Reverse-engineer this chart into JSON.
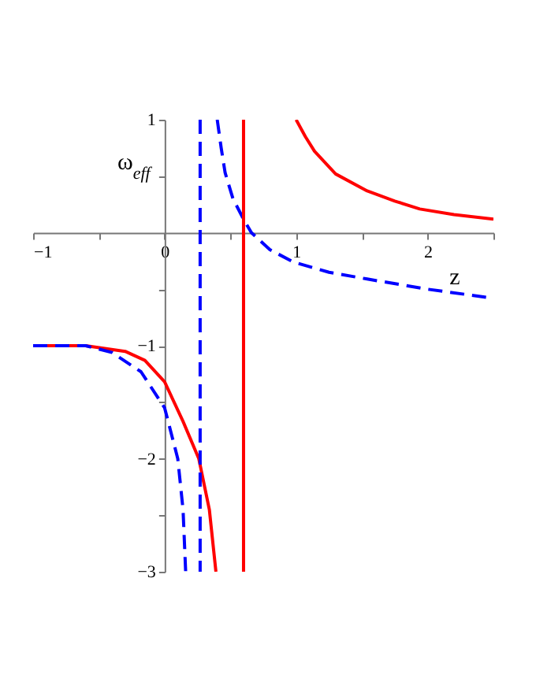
{
  "chart_data": {
    "type": "line",
    "xlabel": "z",
    "ylabel": "ω$_{eff}$",
    "xlim": [
      -1,
      2.5
    ],
    "ylim": [
      -3,
      1
    ],
    "xticks": [
      {
        "value": -1,
        "label": "−1"
      },
      {
        "value": -0.5,
        "label": null
      },
      0,
      {
        "value": 0.5,
        "label": null
      },
      1,
      {
        "value": 1.5,
        "label": null
      },
      2,
      {
        "value": 2.5,
        "label": null
      }
    ],
    "yticks": [
      {
        "value": -3,
        "label": "−3"
      },
      {
        "value": -2.5,
        "label": null
      },
      {
        "value": -2,
        "label": "−2"
      },
      {
        "value": -1.5,
        "label": null
      },
      {
        "value": -1,
        "label": "−1"
      },
      {
        "value": -0.5,
        "label": null
      },
      {
        "value": 0.5,
        "label": null
      },
      1
    ],
    "series": [
      {
        "color": "#ff0000",
        "line_style": "solid",
        "x": [
          -1,
          -0.6,
          -0.3,
          -0.15,
          0,
          0.14,
          0.26,
          0.34,
          0.39,
          null,
          1.0,
          1.07,
          1.14,
          1.3,
          1.54,
          1.75,
          1.94,
          2.2,
          2.5
        ],
        "values": [
          -1,
          -1.0,
          -1.05,
          -1.13,
          -1.32,
          -1.67,
          -2,
          -2.45,
          -3,
          null,
          1,
          0.85,
          0.72,
          0.52,
          0.37,
          0.28,
          0.21,
          0.16,
          0.12
        ]
      },
      {
        "color": "#0000ff",
        "line_style": "dashed",
        "x": [
          -1,
          -0.6,
          -0.4,
          -0.18,
          0,
          0.1,
          0.14,
          0.16,
          null,
          0.4,
          0.43,
          0.46,
          0.52,
          0.6,
          0.66,
          0.8,
          0.98,
          1.25,
          1.54,
          2.0,
          2.5
        ],
        "values": [
          -1,
          -1.0,
          -1.06,
          -1.23,
          -1.55,
          -2,
          -2.45,
          -3,
          null,
          1,
          0.75,
          0.53,
          0.3,
          0.12,
          0,
          -0.15,
          -0.26,
          -0.35,
          -0.41,
          -0.5,
          -0.58
        ]
      }
    ],
    "ref_lines": [
      {
        "axis": "x",
        "value": 0.6,
        "color": "#ff0000",
        "line_style": "solid"
      },
      {
        "axis": "x",
        "value": 0.27,
        "color": "#0000ff",
        "line_style": "dashed"
      }
    ]
  }
}
